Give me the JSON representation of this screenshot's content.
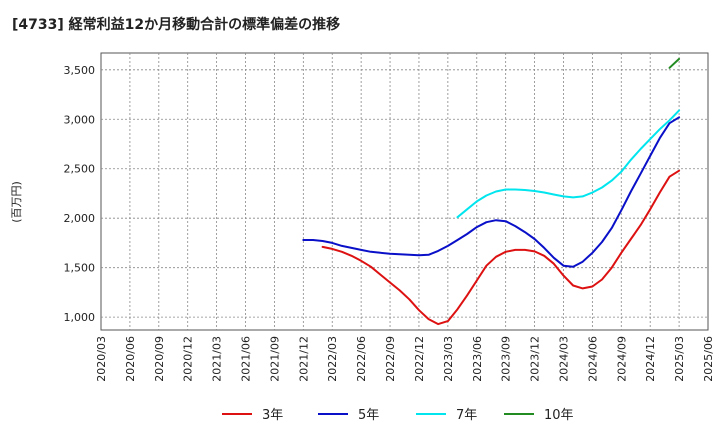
{
  "chart_data": {
    "type": "line",
    "title": "[4733]  経常利益12か月移動合計の標準偏差の推移",
    "ylabel": "(百万円)",
    "xlabel": "",
    "ylim": [
      870,
      3670
    ],
    "yticks": [
      1000,
      1500,
      2000,
      2500,
      3000,
      3500
    ],
    "ytick_labels": [
      "1,000",
      "1,500",
      "2,000",
      "2,500",
      "3,000",
      "3,500"
    ],
    "xticks": [
      "2020/03",
      "2020/06",
      "2020/09",
      "2020/12",
      "2021/03",
      "2021/06",
      "2021/09",
      "2021/12",
      "2022/03",
      "2022/06",
      "2022/09",
      "2022/12",
      "2023/03",
      "2023/06",
      "2023/09",
      "2023/12",
      "2024/03",
      "2024/06",
      "2024/09",
      "2024/12",
      "2025/03",
      "2025/06"
    ],
    "grid": true,
    "legend_position": "bottom",
    "series": [
      {
        "name": "3年",
        "color": "#dd1111",
        "values": [
          1710,
          1690,
          1660,
          1620,
          1570,
          1510,
          1430,
          1350,
          1270,
          1180,
          1070,
          980,
          930,
          960,
          1080,
          1220,
          1370,
          1520,
          1610,
          1660,
          1680,
          1680,
          1665,
          1620,
          1540,
          1420,
          1320,
          1290,
          1310,
          1380,
          1500,
          1650,
          1790,
          1930,
          2090,
          2260,
          2420,
          2480
        ]
      },
      {
        "name": "5年",
        "color": "#0a10c8",
        "values": [
          1780,
          1780,
          1770,
          1750,
          1720,
          1700,
          1680,
          1660,
          1650,
          1640,
          1635,
          1630,
          1625,
          1630,
          1670,
          1720,
          1780,
          1840,
          1910,
          1960,
          1980,
          1970,
          1920,
          1860,
          1790,
          1700,
          1600,
          1520,
          1510,
          1560,
          1650,
          1760,
          1900,
          2080,
          2270,
          2450,
          2630,
          2810,
          2960,
          3020
        ]
      },
      {
        "name": "7年",
        "color": "#00e5ee",
        "values": [
          2010,
          2090,
          2170,
          2230,
          2270,
          2290,
          2290,
          2285,
          2275,
          2260,
          2240,
          2220,
          2210,
          2220,
          2260,
          2310,
          2380,
          2470,
          2590,
          2700,
          2800,
          2900,
          2990,
          3090
        ]
      },
      {
        "name": "10年",
        "color": "#228b22",
        "values": [
          3520,
          3610
        ]
      }
    ]
  }
}
